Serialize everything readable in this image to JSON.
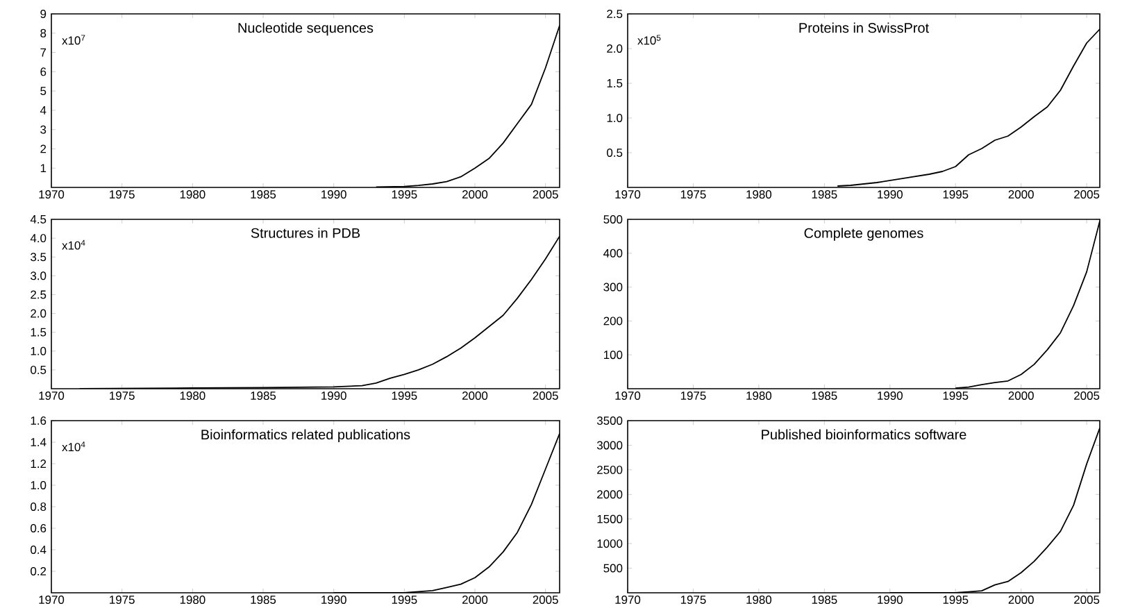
{
  "chart_data": [
    {
      "type": "line",
      "title": "Nucleotide sequences",
      "annotations": [
        "x10$^{7}$"
      ],
      "color": "#000000",
      "xlim": [
        1970,
        2006
      ],
      "ylim": [
        0,
        9
      ],
      "xticks": [
        1970,
        1975,
        1980,
        1985,
        1990,
        1995,
        2000,
        2005
      ],
      "yticks": [
        1,
        2,
        3,
        4,
        5,
        6,
        7,
        8,
        9
      ],
      "x": [
        1993,
        1995,
        1996,
        1997,
        1998,
        1999,
        2000,
        2001,
        2002,
        2003,
        2004,
        2005,
        2006
      ],
      "values": [
        0.02,
        0.05,
        0.1,
        0.18,
        0.3,
        0.55,
        1.0,
        1.5,
        2.3,
        3.3,
        4.3,
        6.2,
        8.4
      ]
    },
    {
      "type": "line",
      "title": "Proteins in SwissProt",
      "annotations": [
        "x10$^{5}$"
      ],
      "color": "#000000",
      "xlim": [
        1970,
        2006
      ],
      "ylim": [
        0,
        2.5
      ],
      "xticks": [
        1970,
        1975,
        1980,
        1985,
        1990,
        1995,
        2000,
        2005
      ],
      "yticks": [
        0.5,
        {
          "value": 1,
          "label": "1.0"
        },
        1.5,
        {
          "value": 2,
          "label": "2.0"
        },
        2.5
      ],
      "x": [
        1986,
        1987,
        1988,
        1989,
        1990,
        1991,
        1992,
        1993,
        1994,
        1995,
        1996,
        1997,
        1998,
        1999,
        2000,
        2001,
        2002,
        2003,
        2004,
        2005,
        2006
      ],
      "values": [
        0.02,
        0.03,
        0.05,
        0.07,
        0.1,
        0.13,
        0.16,
        0.19,
        0.23,
        0.3,
        0.47,
        0.56,
        0.68,
        0.74,
        0.87,
        1.02,
        1.16,
        1.4,
        1.75,
        2.08,
        2.28
      ]
    },
    {
      "type": "line",
      "title": "Structures in PDB",
      "annotations": [
        "x10$^{4}$"
      ],
      "color": "#000000",
      "xlim": [
        1970,
        2006
      ],
      "ylim": [
        0,
        4.5
      ],
      "xticks": [
        1970,
        1975,
        1980,
        1985,
        1990,
        1995,
        2000,
        2005
      ],
      "yticks": [
        0.5,
        {
          "value": 1,
          "label": "1.0"
        },
        1.5,
        {
          "value": 2,
          "label": "2.0"
        },
        2.5,
        {
          "value": 3,
          "label": "3.0"
        },
        3.5,
        {
          "value": 4,
          "label": "4.0"
        },
        4.5
      ],
      "x": [
        1972,
        1980,
        1985,
        1990,
        1992,
        1993,
        1994,
        1995,
        1996,
        1997,
        1998,
        1999,
        2000,
        2001,
        2002,
        2003,
        2004,
        2005,
        2006
      ],
      "values": [
        0.0,
        0.02,
        0.03,
        0.05,
        0.08,
        0.15,
        0.28,
        0.38,
        0.5,
        0.65,
        0.85,
        1.08,
        1.35,
        1.65,
        1.95,
        2.4,
        2.9,
        3.45,
        4.05
      ]
    },
    {
      "type": "line",
      "title": "Complete genomes",
      "color": "#000000",
      "xlim": [
        1970,
        2006
      ],
      "ylim": [
        0,
        500
      ],
      "xticks": [
        1970,
        1975,
        1980,
        1985,
        1990,
        1995,
        2000,
        2005
      ],
      "yticks": [
        100,
        200,
        300,
        400,
        500
      ],
      "x": [
        1995,
        1996,
        1997,
        1998,
        1999,
        2000,
        2001,
        2002,
        2003,
        2004,
        2005,
        2006
      ],
      "values": [
        2,
        5,
        12,
        18,
        23,
        42,
        72,
        115,
        165,
        245,
        345,
        495
      ]
    },
    {
      "type": "line",
      "title": "Bioinformatics related publications",
      "annotations": [
        "x10$^{4}$"
      ],
      "color": "#000000",
      "xlim": [
        1970,
        2006
      ],
      "ylim": [
        0,
        1.6
      ],
      "xticks": [
        1970,
        1975,
        1980,
        1985,
        1990,
        1995,
        2000,
        2005
      ],
      "yticks": [
        0.2,
        0.4,
        0.6,
        0.8,
        {
          "value": 1,
          "label": "1.0"
        },
        1.2,
        1.4,
        1.6
      ],
      "x": [
        1990,
        1995,
        1996,
        1997,
        1998,
        1999,
        2000,
        2001,
        2002,
        2003,
        2004,
        2005,
        2006
      ],
      "values": [
        0.0,
        0.0,
        0.01,
        0.02,
        0.05,
        0.08,
        0.14,
        0.24,
        0.38,
        0.56,
        0.82,
        1.15,
        1.48
      ]
    },
    {
      "type": "line",
      "title": "Published bioinformatics software",
      "color": "#000000",
      "xlim": [
        1970,
        2006
      ],
      "ylim": [
        0,
        3500
      ],
      "xticks": [
        1970,
        1975,
        1980,
        1985,
        1990,
        1995,
        2000,
        2005
      ],
      "yticks": [
        500,
        1000,
        1500,
        2000,
        2500,
        3000,
        3500
      ],
      "x": [
        1990,
        1995,
        1996,
        1997,
        1998,
        1999,
        2000,
        2001,
        2002,
        2003,
        2004,
        2005,
        2006
      ],
      "values": [
        0,
        0,
        20,
        40,
        160,
        230,
        410,
        640,
        930,
        1250,
        1780,
        2620,
        3350
      ]
    }
  ]
}
